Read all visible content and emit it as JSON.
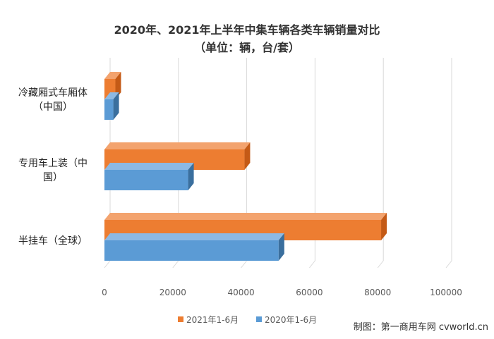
{
  "chart_data": {
    "type": "bar",
    "orientation": "horizontal",
    "title": "2020年、2021年上半年中集车辆各类车辆销量对比",
    "subtitle": "（单位：辆，台/套）",
    "categories": [
      [
        "冷藏厢式车厢体",
        "（中国）"
      ],
      [
        "专用车上装（中",
        "国）"
      ],
      [
        "半挂车（全球）"
      ]
    ],
    "series": [
      {
        "name": "2021年1-6月",
        "color": "#ED7D31",
        "side": "#C45A16",
        "top": "#F3A36E",
        "values": [
          3200,
          41000,
          81000
        ]
      },
      {
        "name": "2020年1-6月",
        "color": "#5B9BD5",
        "side": "#3A6F9E",
        "top": "#8DB9E4",
        "values": [
          2600,
          24500,
          51000
        ]
      }
    ],
    "xlim": [
      0,
      100000
    ],
    "ticks": [
      "0",
      "20000",
      "40000",
      "60000",
      "80000",
      "100000"
    ],
    "tick_values": [
      0,
      20000,
      40000,
      60000,
      80000,
      100000
    ],
    "grid": true,
    "legend_position": "bottom"
  },
  "credit": "制图：第一商用车网 cvworld.cn"
}
